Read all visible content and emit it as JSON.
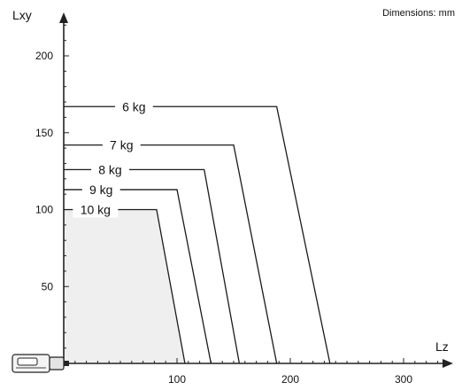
{
  "note": "Dimensions: mm",
  "chart_data": {
    "type": "line",
    "xlabel": "Lz",
    "ylabel": "Lxy",
    "xlim": [
      0,
      340
    ],
    "ylim": [
      0,
      230
    ],
    "x_ticks": [
      100,
      200,
      300
    ],
    "y_ticks": [
      50,
      100,
      150,
      200
    ],
    "grid": false,
    "legend": "none",
    "shaded_region_series": "10 kg",
    "colors": {
      "line": "#1a1a1a",
      "axis": "#222222",
      "shade": "#efefef"
    },
    "series": [
      {
        "name": "6 kg",
        "label_at": [
          62,
          167
        ],
        "points": [
          [
            0,
            167
          ],
          [
            188,
            167
          ],
          [
            235,
            0
          ]
        ]
      },
      {
        "name": "7 kg",
        "label_at": [
          51,
          142
        ],
        "points": [
          [
            0,
            142
          ],
          [
            150,
            142
          ],
          [
            188,
            0
          ]
        ]
      },
      {
        "name": "8 kg",
        "label_at": [
          41,
          126
        ],
        "points": [
          [
            0,
            126
          ],
          [
            124,
            126
          ],
          [
            155,
            0
          ]
        ]
      },
      {
        "name": "9 kg",
        "label_at": [
          33,
          113
        ],
        "points": [
          [
            0,
            113
          ],
          [
            100,
            113
          ],
          [
            130,
            0
          ]
        ]
      },
      {
        "name": "10 kg",
        "label_at": [
          28,
          100
        ],
        "points": [
          [
            0,
            100
          ],
          [
            82,
            100
          ],
          [
            107,
            0
          ]
        ]
      }
    ]
  }
}
